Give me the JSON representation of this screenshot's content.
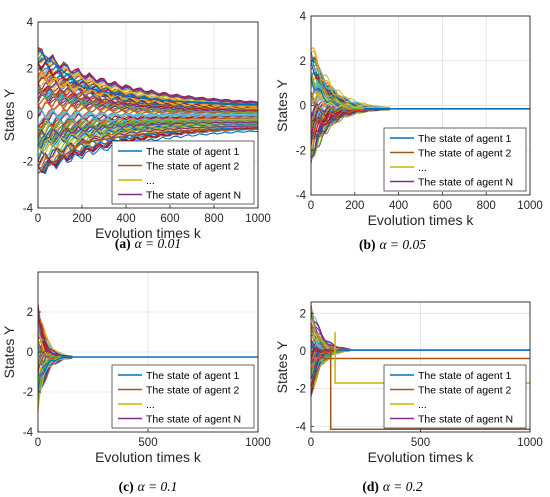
{
  "chart_data": [
    {
      "type": "line",
      "xlabel": "Evolution times k",
      "ylabel": "States Y",
      "xlim": [
        0,
        1000
      ],
      "ylim": [
        -4,
        4
      ],
      "xticks": [
        0,
        200,
        400,
        600,
        800,
        1000
      ],
      "yticks": [
        -4,
        -2,
        0,
        2,
        4
      ],
      "grid": true,
      "legend_position": "bottom-right",
      "legend": [
        "The state of agent 1",
        "The state of agent 2",
        "...",
        "The state of agent N"
      ],
      "caption": {
        "letter": "(a)",
        "text": "α = 0.01"
      },
      "initial_spread": [
        -2.5,
        2.8
      ],
      "convergence": {
        "k": 1000,
        "range": [
          -0.6,
          0.5
        ]
      },
      "series": [
        {
          "values": [
            [
              0,
              2.8
            ],
            [
              200,
              1.2
            ],
            [
              400,
              0.8
            ],
            [
              600,
              0.6
            ],
            [
              1000,
              0.45
            ]
          ]
        },
        {
          "values": [
            [
              0,
              -2.5
            ],
            [
              200,
              -1.2
            ],
            [
              400,
              -0.9
            ],
            [
              600,
              -0.7
            ],
            [
              1000,
              -0.6
            ]
          ]
        }
      ]
    },
    {
      "type": "line",
      "xlabel": "Evolution times k",
      "ylabel": "States Y",
      "xlim": [
        0,
        1000
      ],
      "ylim": [
        -4,
        4
      ],
      "xticks": [
        0,
        200,
        400,
        600,
        800,
        1000
      ],
      "yticks": [
        -4,
        -2,
        0,
        2,
        4
      ],
      "grid": true,
      "legend_position": "bottom-right",
      "legend": [
        "The state of agent 1",
        "The state of agent 2",
        "...",
        "The state of agent N"
      ],
      "caption": {
        "letter": "(b)",
        "text": "α = 0.05"
      },
      "initial_spread": [
        -2.7,
        2.7
      ],
      "consensus": {
        "k": 300,
        "value": -0.15
      }
    },
    {
      "type": "line",
      "xlabel": "Evolution times k",
      "ylabel": "States Y",
      "xlim": [
        0,
        1000
      ],
      "ylim": [
        -4,
        4
      ],
      "xticks": [
        0,
        500,
        1000
      ],
      "yticks": [
        -4,
        -2,
        0,
        2
      ],
      "grid": true,
      "legend_position": "bottom-right",
      "legend": [
        "The state of agent 1",
        "The state of agent 2",
        "...",
        "The state of agent N"
      ],
      "caption": {
        "letter": "(c)",
        "text": "α = 0.1"
      },
      "initial_spread": [
        -2.8,
        2.6
      ],
      "consensus": {
        "k": 130,
        "value": -0.25
      }
    },
    {
      "type": "line",
      "xlabel": "Evolution times k",
      "ylabel": "States Y",
      "xlim": [
        0,
        1000
      ],
      "ylim": [
        -4.3,
        2.6
      ],
      "xticks": [
        0,
        500,
        1000
      ],
      "yticks": [
        -4,
        -2,
        0,
        2
      ],
      "grid": true,
      "legend_position": "bottom-right",
      "legend": [
        "The state of agent 1",
        "The state of agent 2",
        "...",
        "The state of agent N"
      ],
      "caption": {
        "letter": "(d)",
        "text": "α = 0.2"
      },
      "initial_spread": [
        -2.5,
        2.5
      ],
      "consensus": {
        "k": 150,
        "value": 0.05
      },
      "series": [
        {
          "values": [
            [
              0,
              0.05
            ],
            [
              1000,
              0.05
            ]
          ]
        },
        {
          "values": [
            [
              60,
              -0.4
            ],
            [
              1000,
              -0.4
            ]
          ]
        },
        {
          "values": [
            [
              90,
              -4.15
            ],
            [
              1000,
              -4.15
            ]
          ]
        },
        {
          "values": [
            [
              110,
              -1.7
            ],
            [
              1000,
              -1.7
            ]
          ]
        }
      ]
    }
  ],
  "colors": {
    "agent_1": "#0072BD",
    "agent_2": "#A2571A",
    "ellipsis": "#C8B400",
    "agent_N": "#7E2F8E",
    "palette": [
      "#0072BD",
      "#D95319",
      "#EDB120",
      "#7E2F8E",
      "#77AC30",
      "#4DBEEE",
      "#A2142F"
    ]
  }
}
